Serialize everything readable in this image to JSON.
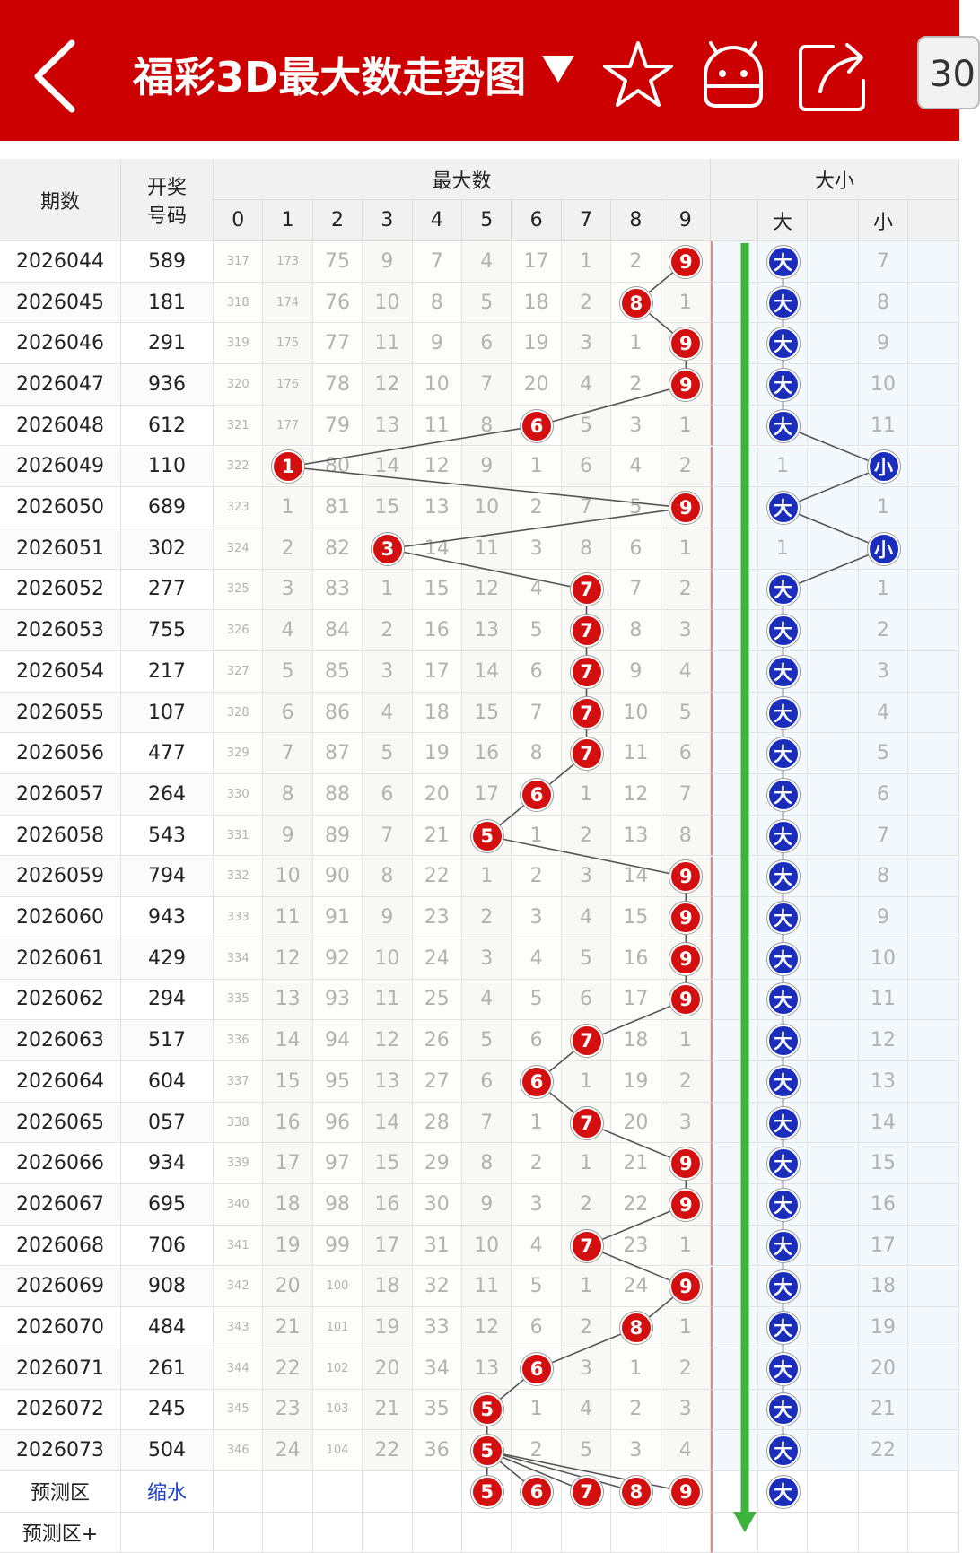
{
  "header": {
    "title": "福彩3D最大数走势图",
    "period_chip": "30",
    "accent": "#cc0000"
  },
  "table": {
    "head": {
      "period": "期数",
      "draw_line1": "开奖",
      "draw_line2": "号码",
      "max_group": "最大数",
      "digits": [
        "0",
        "1",
        "2",
        "3",
        "4",
        "5",
        "6",
        "7",
        "8",
        "9"
      ],
      "size_group": "大小",
      "big": "大",
      "small": "小"
    },
    "rows": [
      {
        "period": "2026044",
        "draw": "589",
        "max": 9,
        "miss": [
          317,
          173,
          75,
          9,
          7,
          4,
          17,
          1,
          2,
          0
        ],
        "size": "大",
        "other_miss": 7
      },
      {
        "period": "2026045",
        "draw": "181",
        "max": 8,
        "miss": [
          318,
          174,
          76,
          10,
          8,
          5,
          18,
          2,
          0,
          1
        ],
        "size": "大",
        "other_miss": 8
      },
      {
        "period": "2026046",
        "draw": "291",
        "max": 9,
        "miss": [
          319,
          175,
          77,
          11,
          9,
          6,
          19,
          3,
          1,
          0
        ],
        "size": "大",
        "other_miss": 9
      },
      {
        "period": "2026047",
        "draw": "936",
        "max": 9,
        "miss": [
          320,
          176,
          78,
          12,
          10,
          7,
          20,
          4,
          2,
          0
        ],
        "size": "大",
        "other_miss": 10
      },
      {
        "period": "2026048",
        "draw": "612",
        "max": 6,
        "miss": [
          321,
          177,
          79,
          13,
          11,
          8,
          0,
          5,
          3,
          1
        ],
        "size": "大",
        "other_miss": 11
      },
      {
        "period": "2026049",
        "draw": "110",
        "max": 1,
        "miss": [
          322,
          0,
          80,
          14,
          12,
          9,
          1,
          6,
          4,
          2
        ],
        "size": "小",
        "other_miss": 1
      },
      {
        "period": "2026050",
        "draw": "689",
        "max": 9,
        "miss": [
          323,
          1,
          81,
          15,
          13,
          10,
          2,
          7,
          5,
          0
        ],
        "size": "大",
        "other_miss": 1
      },
      {
        "period": "2026051",
        "draw": "302",
        "max": 3,
        "miss": [
          324,
          2,
          82,
          0,
          14,
          11,
          3,
          8,
          6,
          1
        ],
        "size": "小",
        "other_miss": 1
      },
      {
        "period": "2026052",
        "draw": "277",
        "max": 7,
        "miss": [
          325,
          3,
          83,
          1,
          15,
          12,
          4,
          0,
          7,
          2
        ],
        "size": "大",
        "other_miss": 1
      },
      {
        "period": "2026053",
        "draw": "755",
        "max": 7,
        "miss": [
          326,
          4,
          84,
          2,
          16,
          13,
          5,
          0,
          8,
          3
        ],
        "size": "大",
        "other_miss": 2
      },
      {
        "period": "2026054",
        "draw": "217",
        "max": 7,
        "miss": [
          327,
          5,
          85,
          3,
          17,
          14,
          6,
          0,
          9,
          4
        ],
        "size": "大",
        "other_miss": 3
      },
      {
        "period": "2026055",
        "draw": "107",
        "max": 7,
        "miss": [
          328,
          6,
          86,
          4,
          18,
          15,
          7,
          0,
          10,
          5
        ],
        "size": "大",
        "other_miss": 4
      },
      {
        "period": "2026056",
        "draw": "477",
        "max": 7,
        "miss": [
          329,
          7,
          87,
          5,
          19,
          16,
          8,
          0,
          11,
          6
        ],
        "size": "大",
        "other_miss": 5
      },
      {
        "period": "2026057",
        "draw": "264",
        "max": 6,
        "miss": [
          330,
          8,
          88,
          6,
          20,
          17,
          0,
          1,
          12,
          7
        ],
        "size": "大",
        "other_miss": 6
      },
      {
        "period": "2026058",
        "draw": "543",
        "max": 5,
        "miss": [
          331,
          9,
          89,
          7,
          21,
          0,
          1,
          2,
          13,
          8
        ],
        "size": "大",
        "other_miss": 7
      },
      {
        "period": "2026059",
        "draw": "794",
        "max": 9,
        "miss": [
          332,
          10,
          90,
          8,
          22,
          1,
          2,
          3,
          14,
          0
        ],
        "size": "大",
        "other_miss": 8
      },
      {
        "period": "2026060",
        "draw": "943",
        "max": 9,
        "miss": [
          333,
          11,
          91,
          9,
          23,
          2,
          3,
          4,
          15,
          0
        ],
        "size": "大",
        "other_miss": 9
      },
      {
        "period": "2026061",
        "draw": "429",
        "max": 9,
        "miss": [
          334,
          12,
          92,
          10,
          24,
          3,
          4,
          5,
          16,
          0
        ],
        "size": "大",
        "other_miss": 10
      },
      {
        "period": "2026062",
        "draw": "294",
        "max": 9,
        "miss": [
          335,
          13,
          93,
          11,
          25,
          4,
          5,
          6,
          17,
          0
        ],
        "size": "大",
        "other_miss": 11
      },
      {
        "period": "2026063",
        "draw": "517",
        "max": 7,
        "miss": [
          336,
          14,
          94,
          12,
          26,
          5,
          6,
          0,
          18,
          1
        ],
        "size": "大",
        "other_miss": 12
      },
      {
        "period": "2026064",
        "draw": "604",
        "max": 6,
        "miss": [
          337,
          15,
          95,
          13,
          27,
          6,
          0,
          1,
          19,
          2
        ],
        "size": "大",
        "other_miss": 13
      },
      {
        "period": "2026065",
        "draw": "057",
        "max": 7,
        "miss": [
          338,
          16,
          96,
          14,
          28,
          7,
          1,
          0,
          20,
          3
        ],
        "size": "大",
        "other_miss": 14
      },
      {
        "period": "2026066",
        "draw": "934",
        "max": 9,
        "miss": [
          339,
          17,
          97,
          15,
          29,
          8,
          2,
          1,
          21,
          0
        ],
        "size": "大",
        "other_miss": 15
      },
      {
        "period": "2026067",
        "draw": "695",
        "max": 9,
        "miss": [
          340,
          18,
          98,
          16,
          30,
          9,
          3,
          2,
          22,
          0
        ],
        "size": "大",
        "other_miss": 16
      },
      {
        "period": "2026068",
        "draw": "706",
        "max": 7,
        "miss": [
          341,
          19,
          99,
          17,
          31,
          10,
          4,
          0,
          23,
          1
        ],
        "size": "大",
        "other_miss": 17
      },
      {
        "period": "2026069",
        "draw": "908",
        "max": 9,
        "miss": [
          342,
          20,
          100,
          18,
          32,
          11,
          5,
          1,
          24,
          0
        ],
        "size": "大",
        "other_miss": 18
      },
      {
        "period": "2026070",
        "draw": "484",
        "max": 8,
        "miss": [
          343,
          21,
          101,
          19,
          33,
          12,
          6,
          2,
          0,
          1
        ],
        "size": "大",
        "other_miss": 19
      },
      {
        "period": "2026071",
        "draw": "261",
        "max": 6,
        "miss": [
          344,
          22,
          102,
          20,
          34,
          13,
          0,
          3,
          1,
          2
        ],
        "size": "大",
        "other_miss": 20
      },
      {
        "period": "2026072",
        "draw": "245",
        "max": 5,
        "miss": [
          345,
          23,
          103,
          21,
          35,
          0,
          1,
          4,
          2,
          3
        ],
        "size": "大",
        "other_miss": 21
      },
      {
        "period": "2026073",
        "draw": "504",
        "max": 5,
        "miss": [
          346,
          24,
          104,
          22,
          36,
          0,
          2,
          5,
          3,
          4
        ],
        "size": "大",
        "other_miss": 22
      }
    ],
    "predict": {
      "label": "预测区",
      "action": "缩水",
      "balls": [
        "5",
        "6",
        "7",
        "8",
        "9"
      ],
      "size_ball": "大"
    },
    "predict_plus": {
      "label": "预测区+"
    }
  },
  "colors": {
    "red_ball": "#d40f0f",
    "blue_ball": "#1b2dbb",
    "trend_arrow": "#3cb43c",
    "separator": "#d98a8a"
  }
}
